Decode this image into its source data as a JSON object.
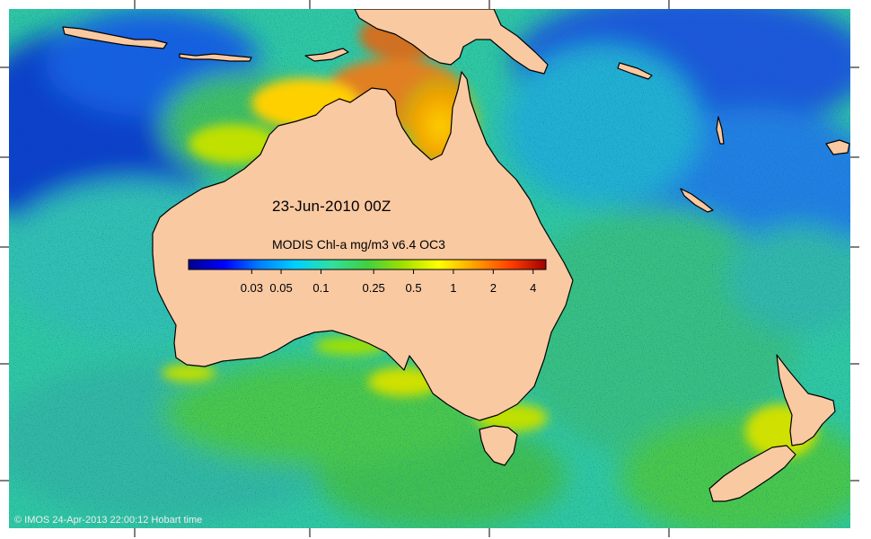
{
  "map": {
    "date_label": "23-Jun-2010 00Z",
    "colorbar": {
      "title": "MODIS Chl-a mg/m3 v6.4 OC3",
      "scale": "log",
      "range": [
        0.01,
        5
      ],
      "ticks": [
        {
          "label": "0.03",
          "value": 0.03
        },
        {
          "label": "0.05",
          "value": 0.05
        },
        {
          "label": "0.1",
          "value": 0.1
        },
        {
          "label": "0.25",
          "value": 0.25
        },
        {
          "label": "0.5",
          "value": 0.5
        },
        {
          "label": "1",
          "value": 1
        },
        {
          "label": "2",
          "value": 2
        },
        {
          "label": "4",
          "value": 4
        }
      ],
      "colors": [
        "#00008f",
        "#0000ff",
        "#0080ff",
        "#00d0ff",
        "#30e0a0",
        "#40d040",
        "#a0e000",
        "#ffff00",
        "#ffa000",
        "#ff4000",
        "#a00000"
      ]
    },
    "credit": "© IMOS 24-Apr-2013 22:00:12 Hobart time",
    "colors": {
      "land": "#f9c9a2",
      "ocean_deep": "#1050d0",
      "ocean_mid": "#30c0a0",
      "ocean_green": "#40c850",
      "coast_high": "#e06010"
    }
  }
}
